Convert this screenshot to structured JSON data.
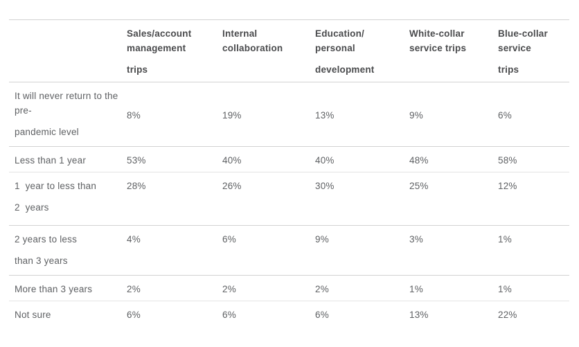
{
  "table": {
    "columns": [
      {
        "lines": [
          "Sales/account management",
          "trips"
        ]
      },
      {
        "lines": [
          "Internal collaboration"
        ]
      },
      {
        "lines": [
          "Education/ personal",
          "development"
        ]
      },
      {
        "lines": [
          "White-collar service trips"
        ]
      },
      {
        "lines": [
          "Blue-collar service",
          "trips"
        ]
      }
    ],
    "rows": [
      {
        "label_lines": [
          "It will never return to the pre-",
          "pandemic level"
        ],
        "values": [
          "8%",
          "19%",
          "13%",
          "9%",
          "6%"
        ],
        "values_valign": "middle",
        "separator": "strong"
      },
      {
        "label_lines": [
          "Less than 1 year"
        ],
        "values": [
          "53%",
          "40%",
          "40%",
          "48%",
          "58%"
        ],
        "values_valign": "top",
        "separator": "light"
      },
      {
        "label_lines": [
          "1  year to less than",
          "2  years"
        ],
        "values": [
          "28%",
          "26%",
          "30%",
          "25%",
          "12%"
        ],
        "values_valign": "top",
        "separator": "strong"
      },
      {
        "label_lines": [
          "2 years to less",
          "than 3 years"
        ],
        "values": [
          "4%",
          "6%",
          "9%",
          "3%",
          "1%"
        ],
        "values_valign": "top",
        "separator": "strong"
      },
      {
        "label_lines": [
          "More than 3 years"
        ],
        "values": [
          "2%",
          "2%",
          "2%",
          "1%",
          "1%"
        ],
        "values_valign": "top",
        "separator": "light"
      },
      {
        "label_lines": [
          "Not sure"
        ],
        "values": [
          "6%",
          "6%",
          "6%",
          "13%",
          "22%"
        ],
        "values_valign": "top",
        "separator": "none"
      }
    ],
    "colors": {
      "header_text": "#4a4b4d",
      "body_text": "#5e6063",
      "separator_strong": "#d2d2d2",
      "separator_light": "#e4e4e4",
      "background": "#ffffff"
    }
  },
  "chart_data": {
    "type": "table",
    "title": "",
    "columns": [
      "Sales/account management trips",
      "Internal collaboration",
      "Education/ personal development",
      "White-collar service trips",
      "Blue-collar service trips"
    ],
    "rows": [
      {
        "label": "It will never return to the pre-pandemic level",
        "values": [
          "8%",
          "19%",
          "13%",
          "9%",
          "6%"
        ]
      },
      {
        "label": "Less than 1 year",
        "values": [
          "53%",
          "40%",
          "40%",
          "48%",
          "58%"
        ]
      },
      {
        "label": "1 year to less than 2 years",
        "values": [
          "28%",
          "26%",
          "30%",
          "25%",
          "12%"
        ]
      },
      {
        "label": "2 years to less than 3 years",
        "values": [
          "4%",
          "6%",
          "9%",
          "3%",
          "1%"
        ]
      },
      {
        "label": "More than 3 years",
        "values": [
          "2%",
          "2%",
          "2%",
          "1%",
          "1%"
        ]
      },
      {
        "label": "Not sure",
        "values": [
          "6%",
          "6%",
          "6%",
          "13%",
          "22%"
        ]
      }
    ]
  }
}
